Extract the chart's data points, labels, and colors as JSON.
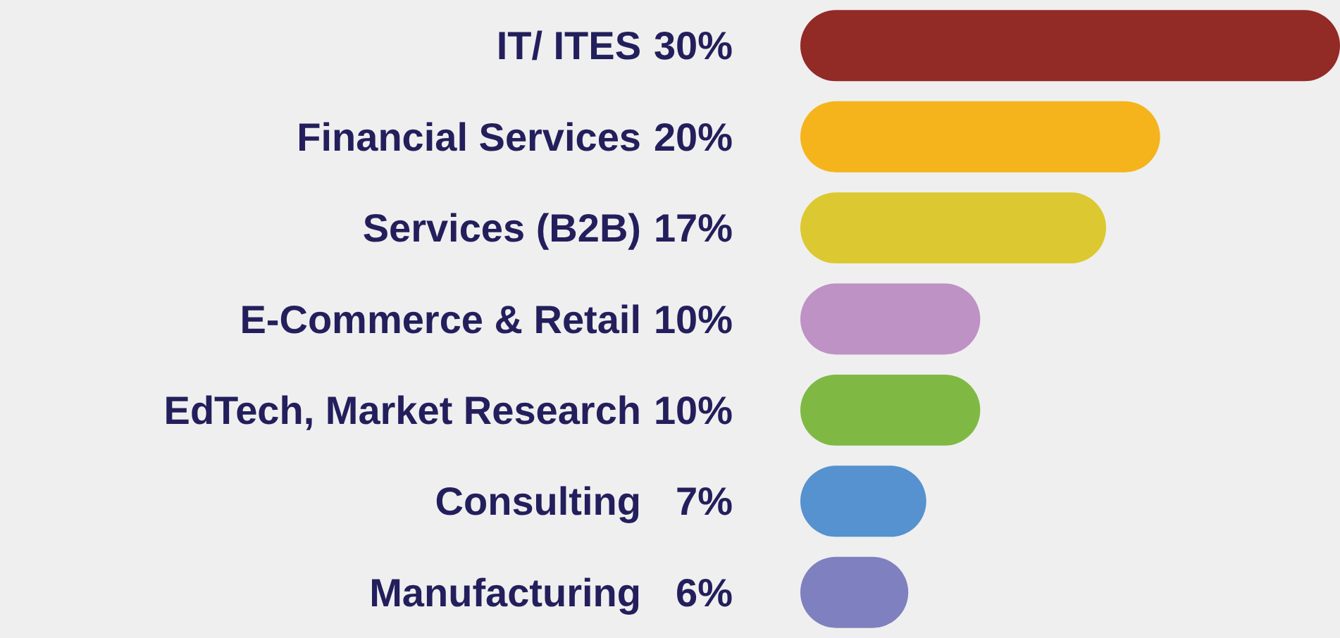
{
  "chart_data": {
    "type": "bar",
    "orientation": "horizontal",
    "categories": [
      "IT/ ITES",
      "Financial Services",
      "Services (B2B)",
      "E-Commerce & Retail",
      "EdTech, Market Research",
      "Consulting",
      "Manufacturing"
    ],
    "values": [
      30,
      20,
      17,
      10,
      10,
      7,
      6
    ],
    "value_labels": [
      "30%",
      "20%",
      "17%",
      "10%",
      "10%",
      "7%",
      "6%"
    ],
    "colors": [
      "#922a26",
      "#f5b41c",
      "#dcc830",
      "#be92c4",
      "#7fb944",
      "#5592cf",
      "#7f80c0"
    ]
  }
}
